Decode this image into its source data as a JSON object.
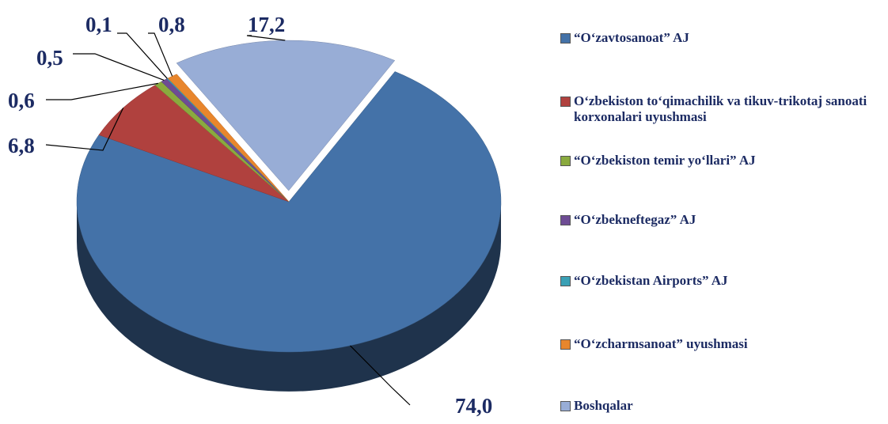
{
  "chart_data": {
    "type": "pie",
    "categories": [
      "“O‘zavtosanoat” AJ",
      "O‘zbekiston to‘qimachilik va tikuv-trikotaj sanoati korxonalari uyushmasi",
      "“O‘zbekiston temir yo‘llari” AJ",
      "“O‘zbekneftegaz” AJ",
      "“O‘zbekistan Airports” AJ",
      "“O‘zcharmsanoat” uyushmasi",
      "Boshqalar"
    ],
    "values": [
      74.0,
      6.8,
      0.6,
      0.5,
      0.1,
      0.8,
      17.2
    ],
    "value_labels": [
      "74,0",
      "6,8",
      "0,6",
      "0,5",
      "0,1",
      "0,8",
      "17,2"
    ],
    "colors": [
      "#4472a8",
      "#b0413e",
      "#8aaa3e",
      "#6e4c94",
      "#3aa0b5",
      "#e8862d",
      "#98add6"
    ],
    "legend": "right"
  }
}
